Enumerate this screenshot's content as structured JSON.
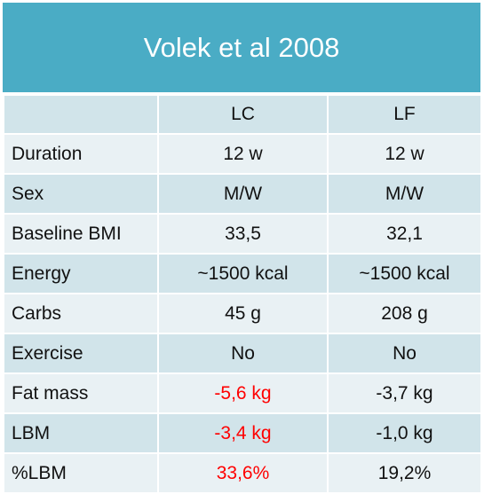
{
  "title": "Volek et al 2008",
  "columns": [
    "",
    "LC",
    "LF"
  ],
  "rows": [
    {
      "label": "Duration",
      "lc": "12 w",
      "lf": "12 w"
    },
    {
      "label": "Sex",
      "lc": "M/W",
      "lf": "M/W"
    },
    {
      "label": "Baseline BMI",
      "lc": "33,5",
      "lf": "32,1"
    },
    {
      "label": "Energy",
      "lc": "~1500 kcal",
      "lf": "~1500 kcal"
    },
    {
      "label": "Carbs",
      "lc": "45 g",
      "lf": "208 g"
    },
    {
      "label": "Exercise",
      "lc": "No",
      "lf": "No"
    },
    {
      "label": "Fat mass",
      "lc": "-5,6 kg",
      "lf": "-3,7 kg"
    },
    {
      "label": "LBM",
      "lc": "-3,4 kg",
      "lf": "-1,0 kg"
    },
    {
      "label": "%LBM",
      "lc": "33,6%",
      "lf": "19,2%"
    }
  ],
  "colors": {
    "header_bg": "#4aacc5",
    "row_dark": "#d1e4ea",
    "row_light": "#e9f1f4",
    "highlight": "#ff0000"
  }
}
